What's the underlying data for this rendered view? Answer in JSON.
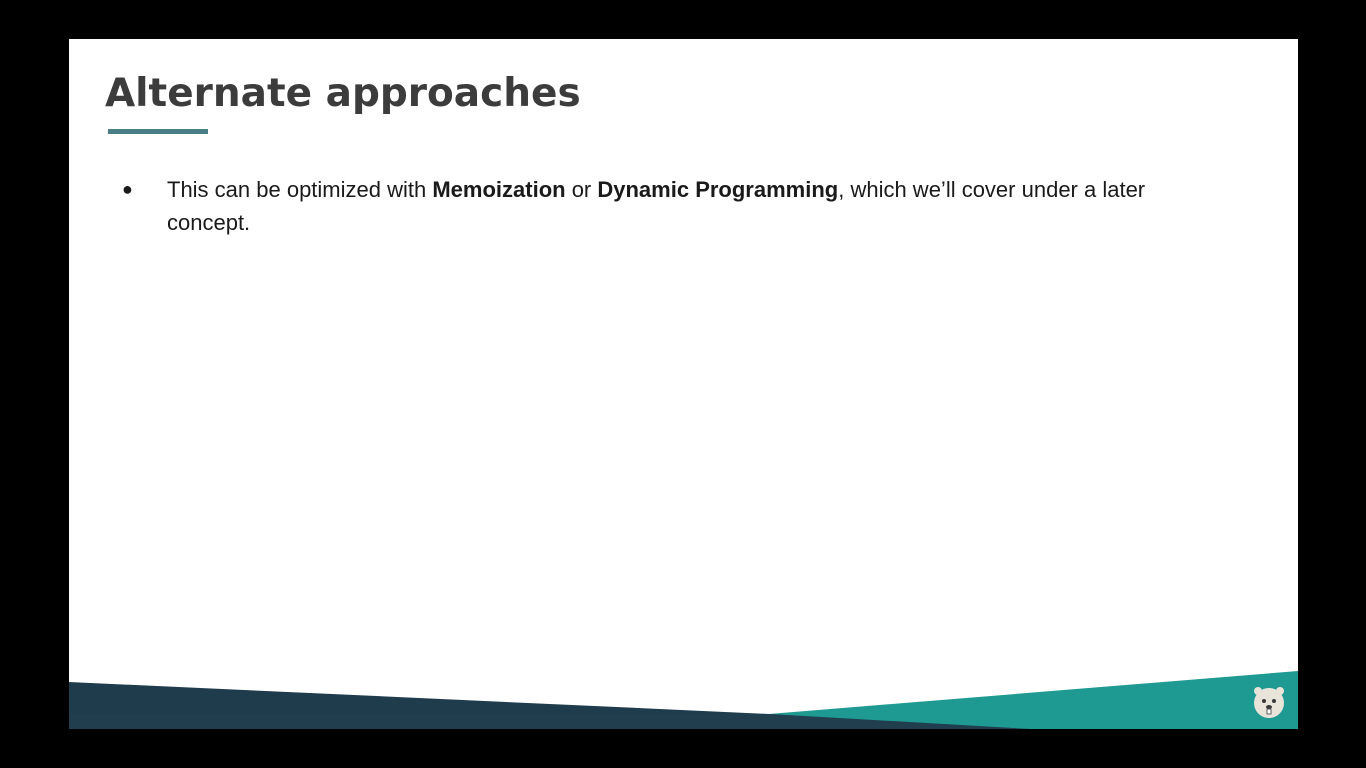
{
  "slide": {
    "title": "Alternate approaches",
    "bullets": [
      {
        "parts": [
          {
            "text": "This can be optimized with ",
            "bold": false
          },
          {
            "text": "Memoization",
            "bold": true
          },
          {
            "text": " or ",
            "bold": false
          },
          {
            "text": "Dynamic Programming",
            "bold": true
          },
          {
            "text": ", which we’ll cover under a later concept.",
            "bold": false
          }
        ]
      }
    ]
  },
  "colors": {
    "background": "#000000",
    "slide": "#ffffff",
    "title": "#3c3c3c",
    "accent": "#4a7f86",
    "footer_dark": "#1f3c4c",
    "footer_teal": "#1f9a93"
  },
  "icons": {
    "logo": "beaver-logo-icon",
    "bullet": "bullet-dot-icon"
  }
}
